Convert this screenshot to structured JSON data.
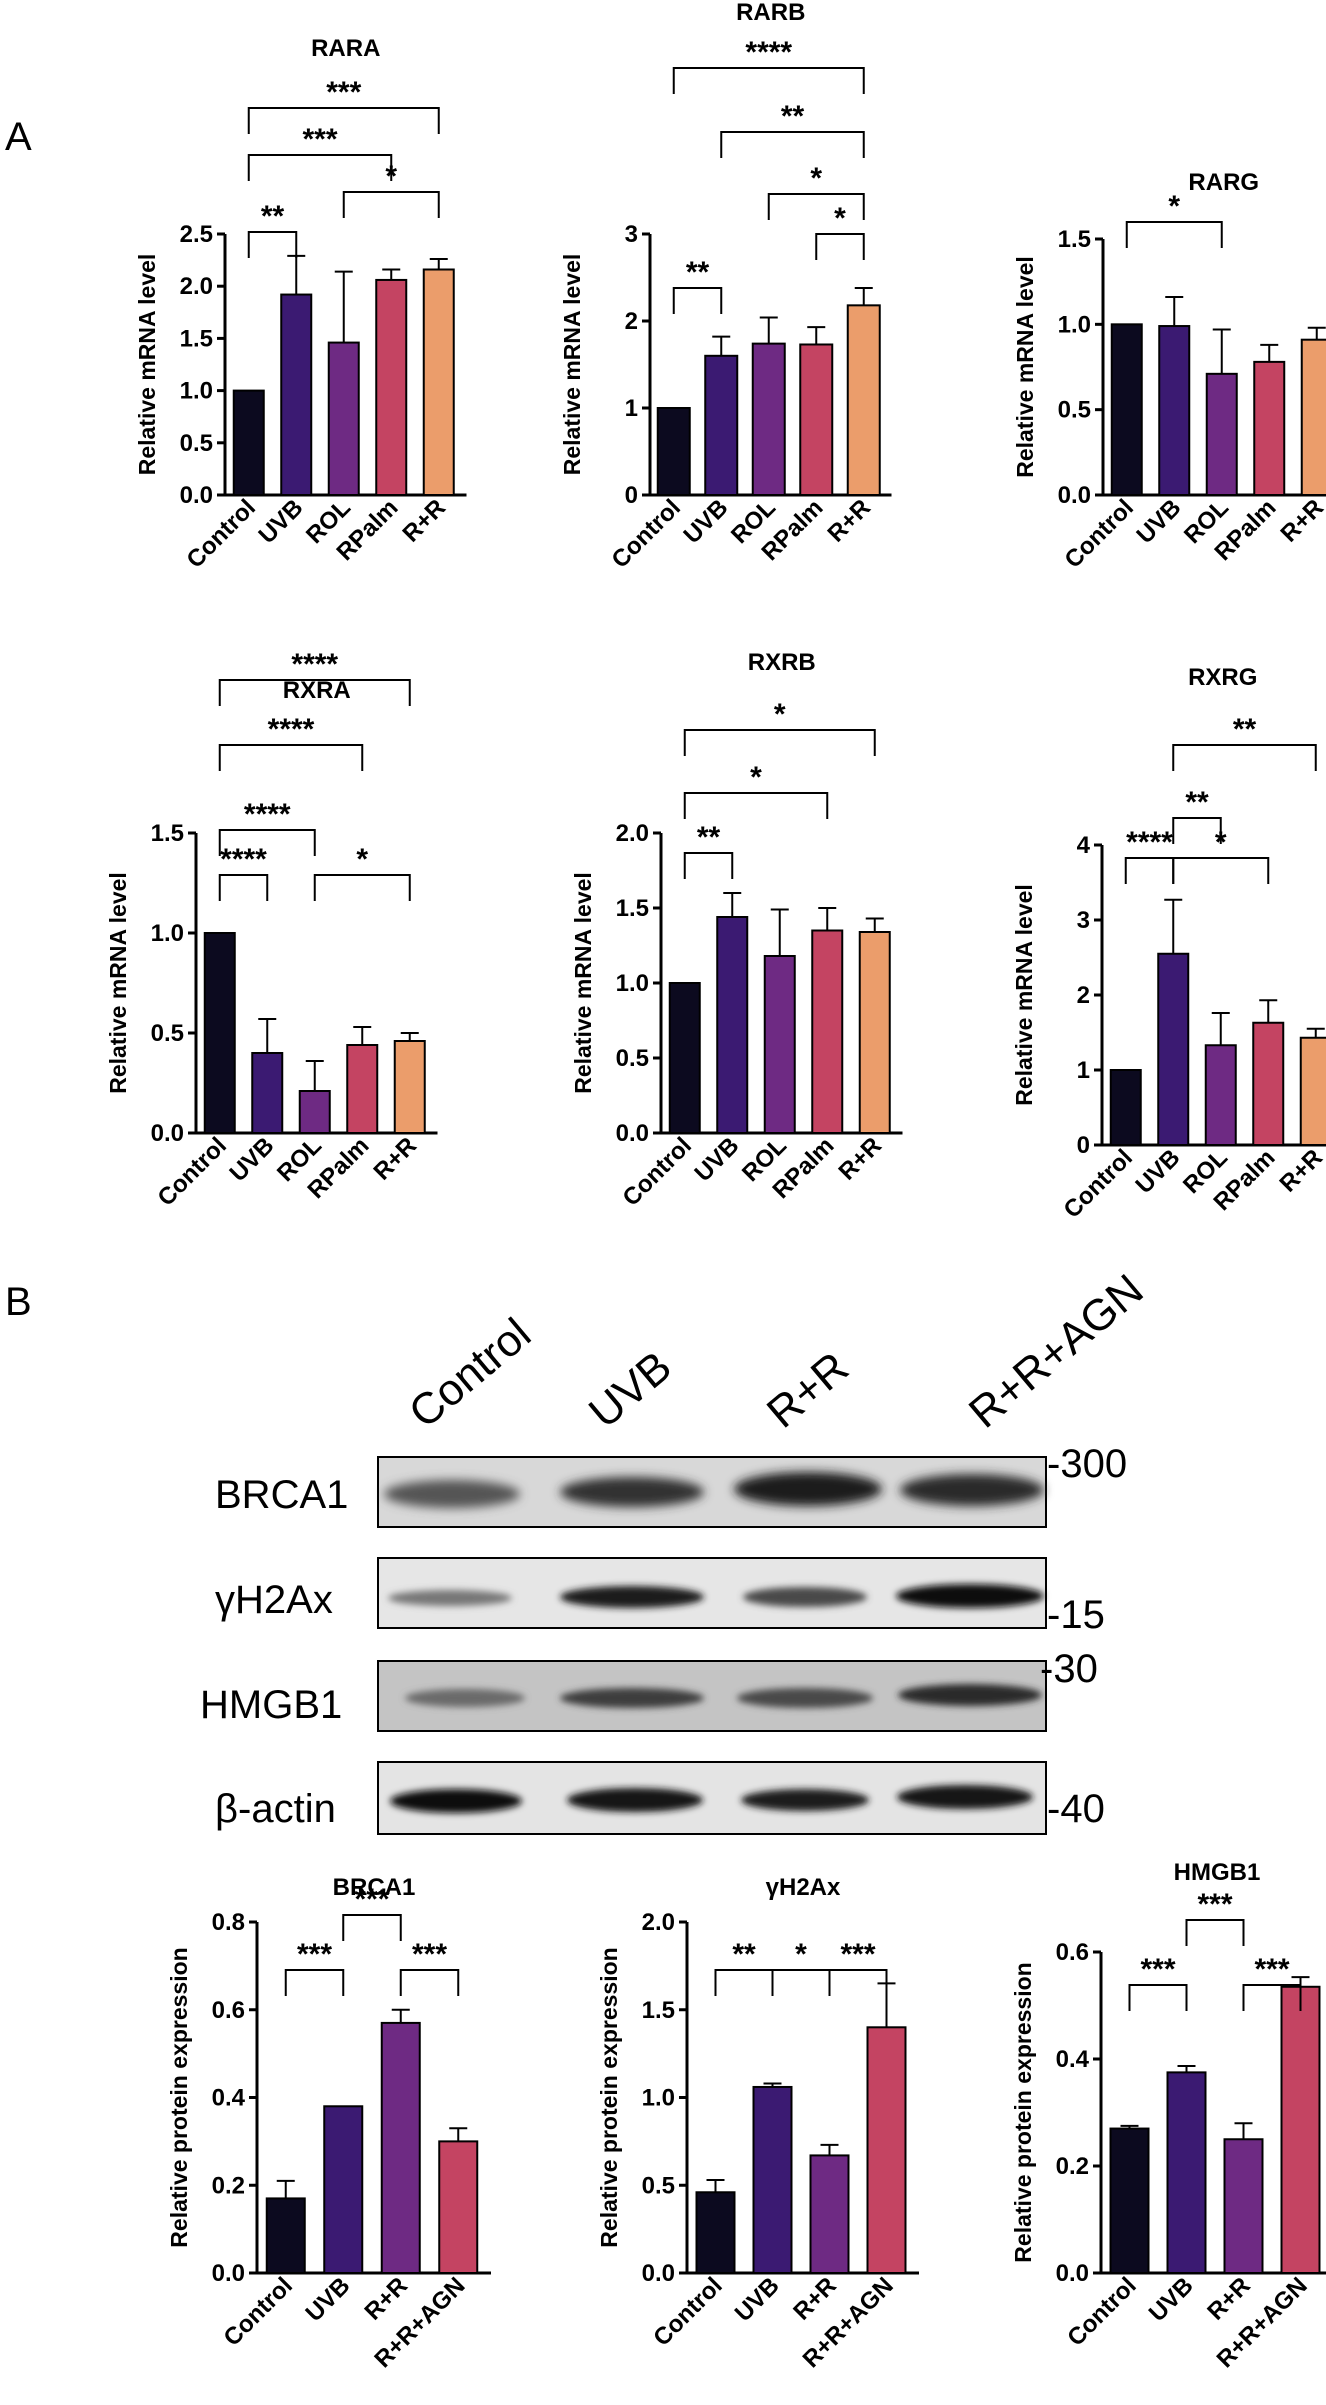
{
  "panels": {
    "A": "A",
    "B": "B"
  },
  "chart_data": [
    {
      "type": "bar",
      "panel": "A",
      "title": "RARA",
      "ylabel": "Relative mRNA level",
      "categories": [
        "Control",
        "UVB",
        "ROL",
        "RPalm",
        "R+R"
      ],
      "values": [
        1.0,
        1.92,
        1.46,
        2.06,
        2.16
      ],
      "errors": [
        0,
        0.37,
        0.68,
        0.1,
        0.1
      ],
      "colors": [
        "#0c0a1f",
        "#3b1a72",
        "#6e2a83",
        "#c44462",
        "#eb9d6b"
      ],
      "ylim": [
        0,
        2.5
      ],
      "yticks": [
        "0.0",
        "0.5",
        "1.0",
        "1.5",
        "2.0",
        "2.5"
      ],
      "significance": [
        {
          "from": "Control",
          "to": "UVB",
          "label": "**"
        },
        {
          "from": "ROL",
          "to": "R+R",
          "label": "*"
        },
        {
          "from": "Control",
          "to": "RPalm",
          "label": "***"
        },
        {
          "from": "Control",
          "to": "R+R",
          "label": "***"
        }
      ]
    },
    {
      "type": "bar",
      "panel": "A",
      "title": "RARB",
      "ylabel": "Relative mRNA level",
      "categories": [
        "Control",
        "UVB",
        "ROL",
        "RPalm",
        "R+R"
      ],
      "values": [
        1.0,
        1.6,
        1.74,
        1.73,
        2.18
      ],
      "errors": [
        0,
        0.22,
        0.3,
        0.2,
        0.2
      ],
      "colors": [
        "#0c0a1f",
        "#3b1a72",
        "#6e2a83",
        "#c44462",
        "#eb9d6b"
      ],
      "ylim": [
        0,
        3
      ],
      "yticks": [
        "0",
        "1",
        "2",
        "3"
      ],
      "significance": [
        {
          "from": "Control",
          "to": "UVB",
          "label": "**"
        },
        {
          "from": "RPalm",
          "to": "R+R",
          "label": "*"
        },
        {
          "from": "ROL",
          "to": "R+R",
          "label": "*"
        },
        {
          "from": "UVB",
          "to": "R+R",
          "label": "**"
        },
        {
          "from": "Control",
          "to": "R+R",
          "label": "****"
        }
      ]
    },
    {
      "type": "bar",
      "panel": "A",
      "title": "RARG",
      "ylabel": "Relative mRNA level",
      "categories": [
        "Control",
        "UVB",
        "ROL",
        "RPalm",
        "R+R"
      ],
      "values": [
        1.0,
        0.99,
        0.71,
        0.78,
        0.91
      ],
      "errors": [
        0,
        0.17,
        0.26,
        0.1,
        0.07
      ],
      "colors": [
        "#0c0a1f",
        "#3b1a72",
        "#6e2a83",
        "#c44462",
        "#eb9d6b"
      ],
      "ylim": [
        0,
        1.5
      ],
      "yticks": [
        "0.0",
        "0.5",
        "1.0",
        "1.5"
      ],
      "significance": [
        {
          "from": "Control",
          "to": "ROL",
          "label": "*"
        }
      ]
    },
    {
      "type": "bar",
      "panel": "A",
      "title": "RXRA",
      "ylabel": "Relative mRNA level",
      "categories": [
        "Control",
        "UVB",
        "ROL",
        "RPalm",
        "R+R"
      ],
      "values": [
        1.0,
        0.4,
        0.21,
        0.44,
        0.46
      ],
      "errors": [
        0,
        0.17,
        0.15,
        0.09,
        0.04
      ],
      "colors": [
        "#0c0a1f",
        "#3b1a72",
        "#6e2a83",
        "#c44462",
        "#eb9d6b"
      ],
      "ylim": [
        0,
        1.5
      ],
      "yticks": [
        "0.0",
        "0.5",
        "1.0",
        "1.5"
      ],
      "significance": [
        {
          "from": "Control",
          "to": "UVB",
          "label": "****"
        },
        {
          "from": "ROL",
          "to": "R+R",
          "label": "*"
        },
        {
          "from": "Control",
          "to": "ROL",
          "label": "****"
        },
        {
          "from": "Control",
          "to": "RPalm",
          "label": "****"
        },
        {
          "from": "Control",
          "to": "R+R",
          "label": "****"
        }
      ]
    },
    {
      "type": "bar",
      "panel": "A",
      "title": "RXRB",
      "ylabel": "Relative mRNA level",
      "categories": [
        "Control",
        "UVB",
        "ROL",
        "RPalm",
        "R+R"
      ],
      "values": [
        1.0,
        1.44,
        1.18,
        1.35,
        1.34
      ],
      "errors": [
        0,
        0.16,
        0.31,
        0.15,
        0.09
      ],
      "colors": [
        "#0c0a1f",
        "#3b1a72",
        "#6e2a83",
        "#c44462",
        "#eb9d6b"
      ],
      "ylim": [
        0,
        2.0
      ],
      "yticks": [
        "0.0",
        "0.5",
        "1.0",
        "1.5",
        "2.0"
      ],
      "significance": [
        {
          "from": "Control",
          "to": "UVB",
          "label": "**"
        },
        {
          "from": "Control",
          "to": "RPalm",
          "label": "*"
        },
        {
          "from": "Control",
          "to": "R+R",
          "label": "*"
        }
      ]
    },
    {
      "type": "bar",
      "panel": "A",
      "title": "RXRG",
      "ylabel": "Relative mRNA level",
      "categories": [
        "Control",
        "UVB",
        "ROL",
        "RPalm",
        "R+R"
      ],
      "values": [
        1.0,
        2.55,
        1.33,
        1.63,
        1.43
      ],
      "errors": [
        0,
        0.72,
        0.43,
        0.3,
        0.12
      ],
      "colors": [
        "#0c0a1f",
        "#3b1a72",
        "#6e2a83",
        "#c44462",
        "#eb9d6b"
      ],
      "ylim": [
        0,
        4
      ],
      "yticks": [
        "0",
        "1",
        "2",
        "3",
        "4"
      ],
      "significance": [
        {
          "from": "Control",
          "to": "UVB",
          "label": "****"
        },
        {
          "from": "UVB",
          "to": "RPalm",
          "label": "*"
        },
        {
          "from": "UVB",
          "to": "ROL",
          "label": "**"
        },
        {
          "from": "UVB",
          "to": "R+R",
          "label": "**"
        }
      ]
    },
    {
      "type": "bar",
      "panel": "B",
      "title": "BRCA1",
      "ylabel": "Relative protein expression",
      "categories": [
        "Control",
        "UVB",
        "R+R",
        "R+R+AGN"
      ],
      "values": [
        0.17,
        0.38,
        0.57,
        0.3
      ],
      "errors": [
        0.04,
        0.0,
        0.03,
        0.03
      ],
      "colors": [
        "#0c0a1f",
        "#3b1a72",
        "#6e2a83",
        "#c44462"
      ],
      "ylim": [
        0,
        0.8
      ],
      "yticks": [
        "0.0",
        "0.2",
        "0.4",
        "0.6",
        "0.8"
      ],
      "significance": [
        {
          "from": "Control",
          "to": "UVB",
          "label": "***"
        },
        {
          "from": "R+R",
          "to": "R+R+AGN",
          "label": "***"
        },
        {
          "from": "UVB",
          "to": "R+R",
          "label": "***"
        }
      ]
    },
    {
      "type": "bar",
      "panel": "B",
      "title": "γH2Ax",
      "ylabel": "Relative protein expression",
      "categories": [
        "Control",
        "UVB",
        "R+R",
        "R+R+AGN"
      ],
      "values": [
        0.46,
        1.06,
        0.67,
        1.4
      ],
      "errors": [
        0.07,
        0.02,
        0.06,
        0.25
      ],
      "colors": [
        "#0c0a1f",
        "#3b1a72",
        "#6e2a83",
        "#c44462"
      ],
      "ylim": [
        0,
        2.0
      ],
      "yticks": [
        "0.0",
        "0.5",
        "1.0",
        "1.5",
        "2.0"
      ],
      "significance": [
        {
          "from": "Control",
          "to": "UVB",
          "label": "**"
        },
        {
          "from": "UVB",
          "to": "R+R",
          "label": "*"
        },
        {
          "from": "R+R",
          "to": "R+R+AGN",
          "label": "***"
        }
      ]
    },
    {
      "type": "bar",
      "panel": "B",
      "title": "HMGB1",
      "ylabel": "Relative protein expression",
      "categories": [
        "Control",
        "UVB",
        "R+R",
        "R+R+AGN"
      ],
      "values": [
        0.27,
        0.375,
        0.25,
        0.535
      ],
      "errors": [
        0.005,
        0.012,
        0.03,
        0.018
      ],
      "colors": [
        "#0c0a1f",
        "#3b1a72",
        "#6e2a83",
        "#c44462"
      ],
      "ylim": [
        0,
        0.6
      ],
      "yticks": [
        "0.0",
        "0.2",
        "0.4",
        "0.6"
      ],
      "significance": [
        {
          "from": "Control",
          "to": "UVB",
          "label": "***"
        },
        {
          "from": "R+R",
          "to": "R+R+AGN",
          "label": "***"
        },
        {
          "from": "UVB",
          "to": "R+R",
          "label": "***"
        }
      ]
    }
  ],
  "western_blot": {
    "lanes": [
      "Control",
      "UVB",
      "R+R",
      "R+R+AGN"
    ],
    "rows": [
      {
        "label": "BRCA1",
        "marker": "-300"
      },
      {
        "label": "γH2Ax",
        "marker": "-15"
      },
      {
        "label": "HMGB1",
        "marker": "-30"
      },
      {
        "label": "β-actin",
        "marker": "-40"
      }
    ]
  }
}
